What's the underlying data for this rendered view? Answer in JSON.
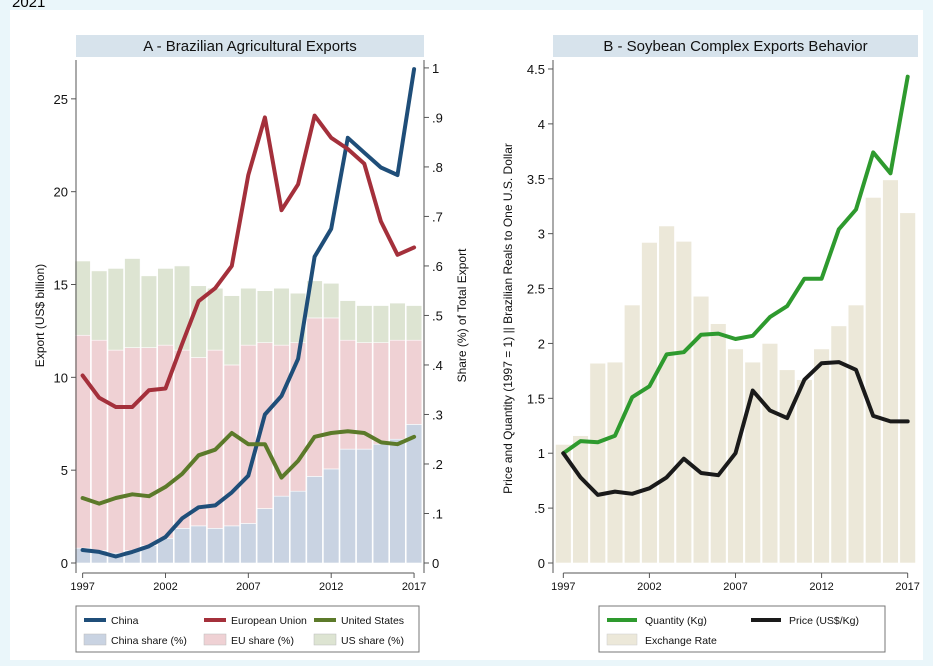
{
  "page": {
    "top_cut_text": "2021"
  },
  "chart_data": [
    {
      "type": "line",
      "panel": "A",
      "title": "A - Brazilian Agricultural Exports",
      "ylabel_left": "Export (US$ billion)",
      "ylabel_right": "Share (%) of Total Export",
      "x": [
        1997,
        1998,
        1999,
        2000,
        2001,
        2002,
        2003,
        2004,
        2005,
        2006,
        2007,
        2008,
        2009,
        2010,
        2011,
        2012,
        2013,
        2014,
        2015,
        2016,
        2017
      ],
      "xticks": [
        "1997",
        "2002",
        "2007",
        "2012",
        "2017"
      ],
      "xtick_values": [
        1997,
        2002,
        2007,
        2012,
        2017
      ],
      "yticks_left": [
        "0",
        "5",
        "10",
        "15",
        "20",
        "25"
      ],
      "yticks_left_values": [
        0,
        5,
        10,
        15,
        20,
        25
      ],
      "yticks_right": [
        "0",
        ".1",
        ".2",
        ".3",
        ".4",
        ".5",
        ".6",
        ".7",
        ".8",
        ".9",
        "1"
      ],
      "yticks_right_values": [
        0,
        0.1,
        0.2,
        0.3,
        0.4,
        0.5,
        0.6,
        0.7,
        0.8,
        0.9,
        1
      ],
      "ylim_left": [
        0,
        27.2
      ],
      "ylim_right": [
        0,
        1.02
      ],
      "xlim": [
        1996.6,
        2017.6
      ],
      "series": [
        {
          "name": "China",
          "axis": "left",
          "color": "#1f4e79",
          "values": [
            0.7,
            0.6,
            0.35,
            0.6,
            0.9,
            1.4,
            2.4,
            3.0,
            3.1,
            3.8,
            4.7,
            8.0,
            9.0,
            11.0,
            16.5,
            18.0,
            22.9,
            22.1,
            21.3,
            20.9,
            26.6
          ]
        },
        {
          "name": "European Union",
          "axis": "left",
          "color": "#a4303b",
          "values": [
            10.1,
            8.9,
            8.4,
            8.4,
            9.3,
            9.4,
            11.8,
            14.1,
            14.8,
            16.0,
            20.9,
            24.0,
            19.0,
            20.4,
            24.1,
            22.9,
            22.3,
            21.5,
            18.4,
            16.6,
            17.0
          ]
        },
        {
          "name": "United States",
          "axis": "left",
          "color": "#5c7a2a",
          "values": [
            3.5,
            3.2,
            3.5,
            3.7,
            3.6,
            4.1,
            4.8,
            5.8,
            6.1,
            7.0,
            6.4,
            6.4,
            4.6,
            5.5,
            6.8,
            7.0,
            7.1,
            7.0,
            6.5,
            6.4,
            6.8
          ]
        }
      ],
      "bars": [
        {
          "name": "China share (%)",
          "axis": "right",
          "color": "#c9d3e2",
          "values": [
            0.03,
            0.025,
            0.02,
            0.025,
            0.035,
            0.05,
            0.07,
            0.075,
            0.07,
            0.075,
            0.08,
            0.11,
            0.135,
            0.145,
            0.175,
            0.19,
            0.23,
            0.23,
            0.24,
            0.25,
            0.28
          ]
        },
        {
          "name": "EU share (%)",
          "axis": "right",
          "color": "#efd1d4",
          "values": [
            0.43,
            0.425,
            0.41,
            0.41,
            0.4,
            0.39,
            0.36,
            0.34,
            0.36,
            0.325,
            0.36,
            0.335,
            0.305,
            0.3,
            0.32,
            0.305,
            0.22,
            0.215,
            0.205,
            0.2,
            0.17
          ]
        },
        {
          "name": "US share (%)",
          "axis": "right",
          "color": "#dde4d2",
          "values": [
            0.15,
            0.14,
            0.165,
            0.18,
            0.145,
            0.155,
            0.17,
            0.145,
            0.125,
            0.14,
            0.115,
            0.105,
            0.115,
            0.1,
            0.075,
            0.07,
            0.08,
            0.075,
            0.075,
            0.075,
            0.07
          ]
        }
      ],
      "legend": {
        "placement": "bottom",
        "items": [
          {
            "label": "China",
            "kind": "line",
            "color": "#1f4e79"
          },
          {
            "label": "European Union",
            "kind": "line",
            "color": "#a4303b"
          },
          {
            "label": "United States",
            "kind": "line",
            "color": "#5c7a2a"
          },
          {
            "label": "China share (%)",
            "kind": "box",
            "color": "#c9d3e2"
          },
          {
            "label": "EU share (%)",
            "kind": "box",
            "color": "#efd1d4"
          },
          {
            "label": "US share (%)",
            "kind": "box",
            "color": "#dde4d2"
          }
        ]
      }
    },
    {
      "type": "line",
      "panel": "B",
      "title": "B - Soybean Complex Exports Behavior",
      "ylabel": "Price and Quantity (1997 = 1) || Brazilian Reals to One U.S. Dollar",
      "x": [
        1997,
        1998,
        1999,
        2000,
        2001,
        2002,
        2003,
        2004,
        2005,
        2006,
        2007,
        2008,
        2009,
        2010,
        2011,
        2012,
        2013,
        2014,
        2015,
        2016,
        2017
      ],
      "xticks": [
        "1997",
        "2002",
        "2007",
        "2012",
        "2017"
      ],
      "xtick_values": [
        1997,
        2002,
        2007,
        2012,
        2017
      ],
      "yticks": [
        "0",
        ".5",
        "1",
        "1.5",
        "2",
        "2.5",
        "3",
        "3.5",
        "4",
        "4.5"
      ],
      "ytick_values": [
        0,
        0.5,
        1,
        1.5,
        2,
        2.5,
        3,
        3.5,
        4,
        4.5
      ],
      "ylim": [
        0,
        4.6
      ],
      "xlim": [
        1996.4,
        2017.6
      ],
      "series": [
        {
          "name": "Quantity (Kg)",
          "color": "#2e9a2e",
          "values": [
            1.0,
            1.11,
            1.1,
            1.16,
            1.51,
            1.61,
            1.9,
            1.92,
            2.08,
            2.09,
            2.04,
            2.07,
            2.24,
            2.34,
            2.59,
            2.59,
            3.04,
            3.22,
            3.74,
            3.55,
            4.43
          ]
        },
        {
          "name": "Price (US$/Kg)",
          "color": "#1a1a1a",
          "values": [
            1.0,
            0.78,
            0.62,
            0.65,
            0.63,
            0.68,
            0.78,
            0.95,
            0.82,
            0.8,
            1.0,
            1.57,
            1.39,
            1.32,
            1.67,
            1.82,
            1.83,
            1.76,
            1.34,
            1.29,
            1.29
          ]
        }
      ],
      "bars": [
        {
          "name": "Exchange Rate",
          "color": "#ece8d9",
          "values": [
            1.08,
            1.16,
            1.82,
            1.83,
            2.35,
            2.92,
            3.07,
            2.93,
            2.43,
            2.18,
            1.95,
            1.83,
            2.0,
            1.76,
            1.67,
            1.95,
            2.16,
            2.35,
            3.33,
            3.49,
            3.19
          ]
        }
      ],
      "legend": {
        "placement": "bottom",
        "items": [
          {
            "label": "Quantity (Kg)",
            "kind": "line",
            "color": "#2e9a2e"
          },
          {
            "label": "Price (US$/Kg)",
            "kind": "line",
            "color": "#1a1a1a"
          },
          {
            "label": "Exchange Rate",
            "kind": "box",
            "color": "#ece8d9"
          }
        ]
      }
    }
  ]
}
